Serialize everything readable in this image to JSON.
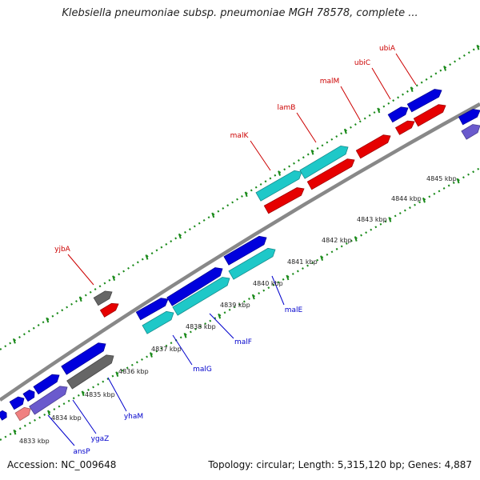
{
  "title": "Klebsiella pneumoniae subsp. pneumoniae MGH 78578, complete ...",
  "footer": {
    "accession": "Accession: NC_009648",
    "summary": "Topology: circular; Length: 5,315,120 bp; Genes: 4,887"
  },
  "colors": {
    "plus_gene": "#e60000",
    "minus_gene": "#0000dd",
    "plus_operon": "#1ec8c8",
    "unknown_gene": "#666666",
    "pseudo_gene": "#f08080",
    "other_gene": "#6a5acd",
    "plus_label": "#cc0000",
    "minus_label": "#0000cc",
    "backbone": "#808080",
    "ruler_dots": "#1a8a1a"
  },
  "ticks": [
    "4833 kbp",
    "4834 kbp",
    "4835 kbp",
    "4836 kbp",
    "4837 kbp",
    "4838 kbp",
    "4839 kbp",
    "4840 kbp",
    "4841 kbp",
    "4842 kbp",
    "4843 kbp",
    "4844 kbp",
    "4845 kbp"
  ],
  "upper_labels": [
    "yjbA",
    "malK",
    "lamB",
    "malM",
    "ubiC",
    "ubiA"
  ],
  "lower_labels": [
    "ansP",
    "ygaZ",
    "yhaM",
    "malG",
    "malF",
    "malE"
  ]
}
